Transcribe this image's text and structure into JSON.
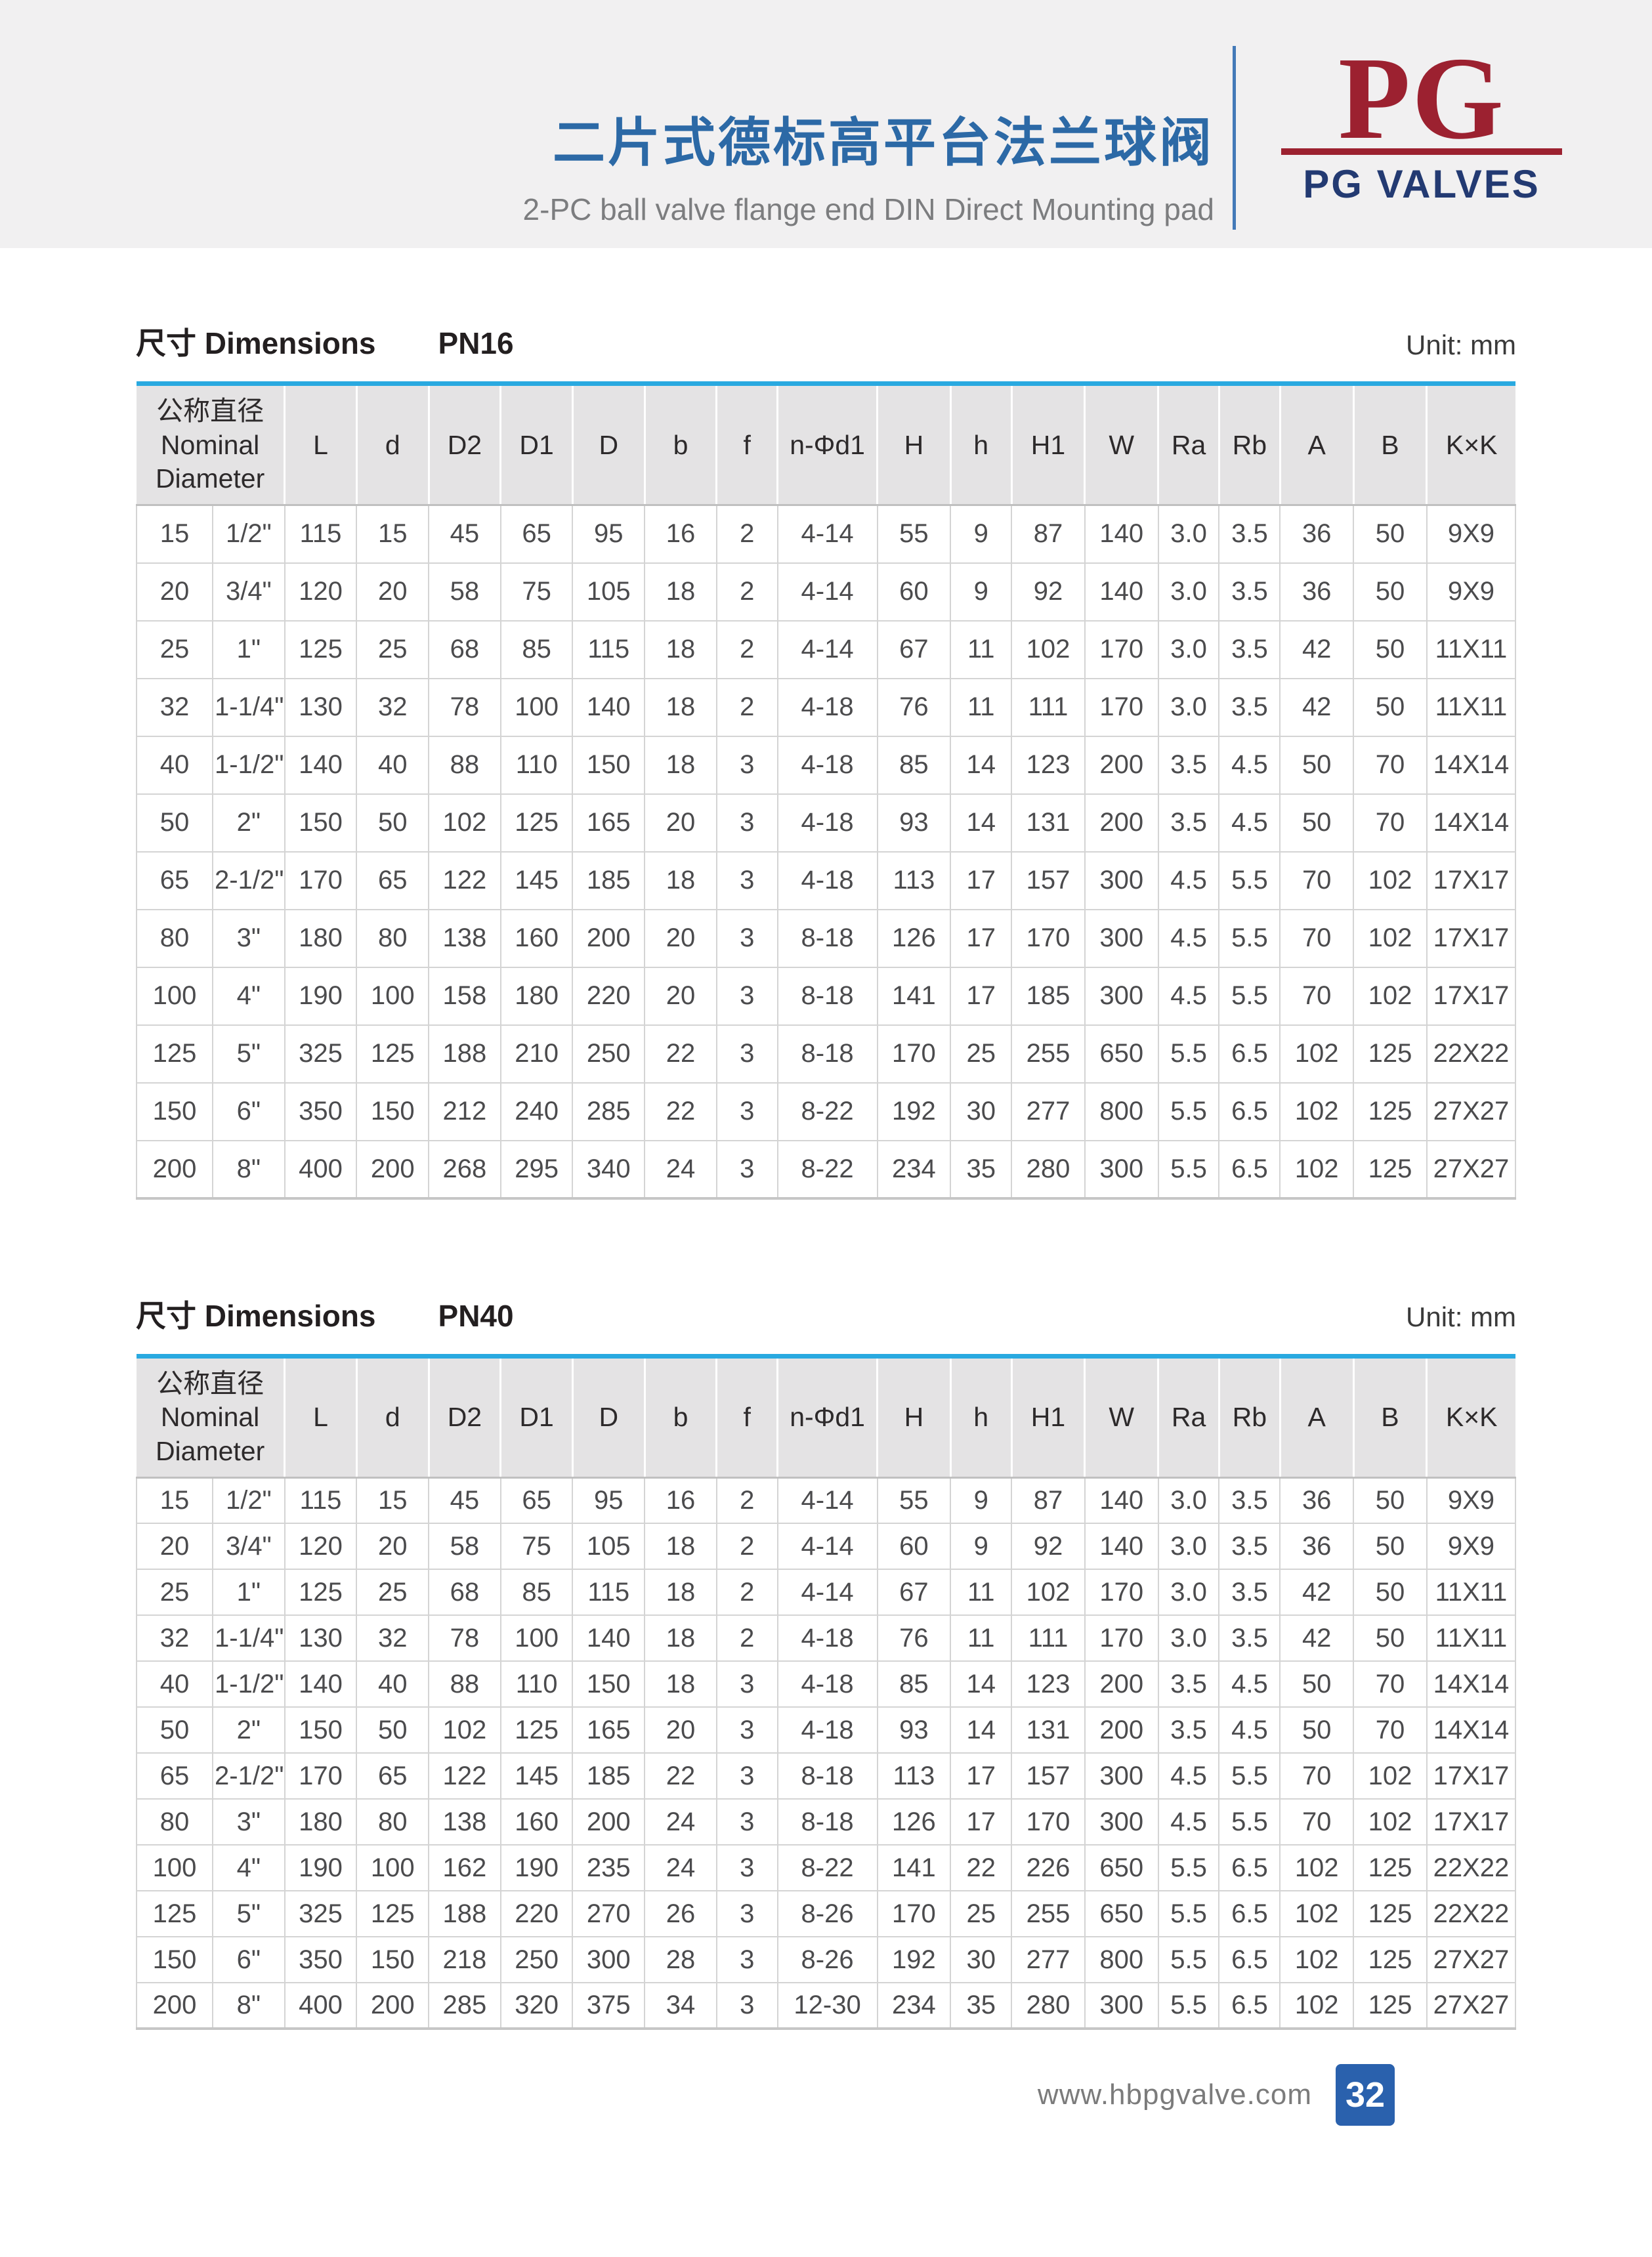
{
  "header": {
    "title_cn": "二片式德标高平台法兰球阀",
    "title_en": "2-PC ball valve flange end DIN Direct Mounting pad",
    "logo_monogram": "PG",
    "logo_brand": "PG VALVES"
  },
  "table_header": {
    "nominal_cn": "公称直径",
    "nominal_en_line1": "Nominal",
    "nominal_en_line2": "Diameter",
    "columns": [
      "L",
      "d",
      "D2",
      "D1",
      "D",
      "b",
      "f",
      "n-Φd1",
      "H",
      "h",
      "H1",
      "W",
      "Ra",
      "Rb",
      "A",
      "B",
      "K×K"
    ]
  },
  "tables": [
    {
      "title_cn": "尺寸",
      "title_en": "Dimensions",
      "pn": "PN16",
      "unit": "Unit: mm",
      "rows": [
        [
          "15",
          "1/2\"",
          "115",
          "15",
          "45",
          "65",
          "95",
          "16",
          "2",
          "4-14",
          "55",
          "9",
          "87",
          "140",
          "3.0",
          "3.5",
          "36",
          "50",
          "9X9"
        ],
        [
          "20",
          "3/4\"",
          "120",
          "20",
          "58",
          "75",
          "105",
          "18",
          "2",
          "4-14",
          "60",
          "9",
          "92",
          "140",
          "3.0",
          "3.5",
          "36",
          "50",
          "9X9"
        ],
        [
          "25",
          "1\"",
          "125",
          "25",
          "68",
          "85",
          "115",
          "18",
          "2",
          "4-14",
          "67",
          "11",
          "102",
          "170",
          "3.0",
          "3.5",
          "42",
          "50",
          "11X11"
        ],
        [
          "32",
          "1-1/4\"",
          "130",
          "32",
          "78",
          "100",
          "140",
          "18",
          "2",
          "4-18",
          "76",
          "11",
          "111",
          "170",
          "3.0",
          "3.5",
          "42",
          "50",
          "11X11"
        ],
        [
          "40",
          "1-1/2\"",
          "140",
          "40",
          "88",
          "110",
          "150",
          "18",
          "3",
          "4-18",
          "85",
          "14",
          "123",
          "200",
          "3.5",
          "4.5",
          "50",
          "70",
          "14X14"
        ],
        [
          "50",
          "2\"",
          "150",
          "50",
          "102",
          "125",
          "165",
          "20",
          "3",
          "4-18",
          "93",
          "14",
          "131",
          "200",
          "3.5",
          "4.5",
          "50",
          "70",
          "14X14"
        ],
        [
          "65",
          "2-1/2\"",
          "170",
          "65",
          "122",
          "145",
          "185",
          "18",
          "3",
          "4-18",
          "113",
          "17",
          "157",
          "300",
          "4.5",
          "5.5",
          "70",
          "102",
          "17X17"
        ],
        [
          "80",
          "3\"",
          "180",
          "80",
          "138",
          "160",
          "200",
          "20",
          "3",
          "8-18",
          "126",
          "17",
          "170",
          "300",
          "4.5",
          "5.5",
          "70",
          "102",
          "17X17"
        ],
        [
          "100",
          "4\"",
          "190",
          "100",
          "158",
          "180",
          "220",
          "20",
          "3",
          "8-18",
          "141",
          "17",
          "185",
          "300",
          "4.5",
          "5.5",
          "70",
          "102",
          "17X17"
        ],
        [
          "125",
          "5\"",
          "325",
          "125",
          "188",
          "210",
          "250",
          "22",
          "3",
          "8-18",
          "170",
          "25",
          "255",
          "650",
          "5.5",
          "6.5",
          "102",
          "125",
          "22X22"
        ],
        [
          "150",
          "6\"",
          "350",
          "150",
          "212",
          "240",
          "285",
          "22",
          "3",
          "8-22",
          "192",
          "30",
          "277",
          "800",
          "5.5",
          "6.5",
          "102",
          "125",
          "27X27"
        ],
        [
          "200",
          "8\"",
          "400",
          "200",
          "268",
          "295",
          "340",
          "24",
          "3",
          "8-22",
          "234",
          "35",
          "280",
          "300",
          "5.5",
          "6.5",
          "102",
          "125",
          "27X27"
        ]
      ]
    },
    {
      "title_cn": "尺寸",
      "title_en": "Dimensions",
      "pn": "PN40",
      "unit": "Unit: mm",
      "rows": [
        [
          "15",
          "1/2\"",
          "115",
          "15",
          "45",
          "65",
          "95",
          "16",
          "2",
          "4-14",
          "55",
          "9",
          "87",
          "140",
          "3.0",
          "3.5",
          "36",
          "50",
          "9X9"
        ],
        [
          "20",
          "3/4\"",
          "120",
          "20",
          "58",
          "75",
          "105",
          "18",
          "2",
          "4-14",
          "60",
          "9",
          "92",
          "140",
          "3.0",
          "3.5",
          "36",
          "50",
          "9X9"
        ],
        [
          "25",
          "1\"",
          "125",
          "25",
          "68",
          "85",
          "115",
          "18",
          "2",
          "4-14",
          "67",
          "11",
          "102",
          "170",
          "3.0",
          "3.5",
          "42",
          "50",
          "11X11"
        ],
        [
          "32",
          "1-1/4\"",
          "130",
          "32",
          "78",
          "100",
          "140",
          "18",
          "2",
          "4-18",
          "76",
          "11",
          "111",
          "170",
          "3.0",
          "3.5",
          "42",
          "50",
          "11X11"
        ],
        [
          "40",
          "1-1/2\"",
          "140",
          "40",
          "88",
          "110",
          "150",
          "18",
          "3",
          "4-18",
          "85",
          "14",
          "123",
          "200",
          "3.5",
          "4.5",
          "50",
          "70",
          "14X14"
        ],
        [
          "50",
          "2\"",
          "150",
          "50",
          "102",
          "125",
          "165",
          "20",
          "3",
          "4-18",
          "93",
          "14",
          "131",
          "200",
          "3.5",
          "4.5",
          "50",
          "70",
          "14X14"
        ],
        [
          "65",
          "2-1/2\"",
          "170",
          "65",
          "122",
          "145",
          "185",
          "22",
          "3",
          "8-18",
          "113",
          "17",
          "157",
          "300",
          "4.5",
          "5.5",
          "70",
          "102",
          "17X17"
        ],
        [
          "80",
          "3\"",
          "180",
          "80",
          "138",
          "160",
          "200",
          "24",
          "3",
          "8-18",
          "126",
          "17",
          "170",
          "300",
          "4.5",
          "5.5",
          "70",
          "102",
          "17X17"
        ],
        [
          "100",
          "4\"",
          "190",
          "100",
          "162",
          "190",
          "235",
          "24",
          "3",
          "8-22",
          "141",
          "22",
          "226",
          "650",
          "5.5",
          "6.5",
          "102",
          "125",
          "22X22"
        ],
        [
          "125",
          "5\"",
          "325",
          "125",
          "188",
          "220",
          "270",
          "26",
          "3",
          "8-26",
          "170",
          "25",
          "255",
          "650",
          "5.5",
          "6.5",
          "102",
          "125",
          "22X22"
        ],
        [
          "150",
          "6\"",
          "350",
          "150",
          "218",
          "250",
          "300",
          "28",
          "3",
          "8-26",
          "192",
          "30",
          "277",
          "800",
          "5.5",
          "6.5",
          "102",
          "125",
          "27X27"
        ],
        [
          "200",
          "8\"",
          "400",
          "200",
          "285",
          "320",
          "375",
          "34",
          "3",
          "12-30",
          "234",
          "35",
          "280",
          "300",
          "5.5",
          "6.5",
          "102",
          "125",
          "27X27"
        ]
      ]
    }
  ],
  "footer": {
    "url": "www.hbpgvalve.com",
    "page_number": "32"
  },
  "colors": {
    "accent-blue": "#2c69a6",
    "table-top": "#29a9e0",
    "logo-red": "#9c2130",
    "logo-navy": "#233a72",
    "pagebox-blue": "#2a61ad"
  }
}
